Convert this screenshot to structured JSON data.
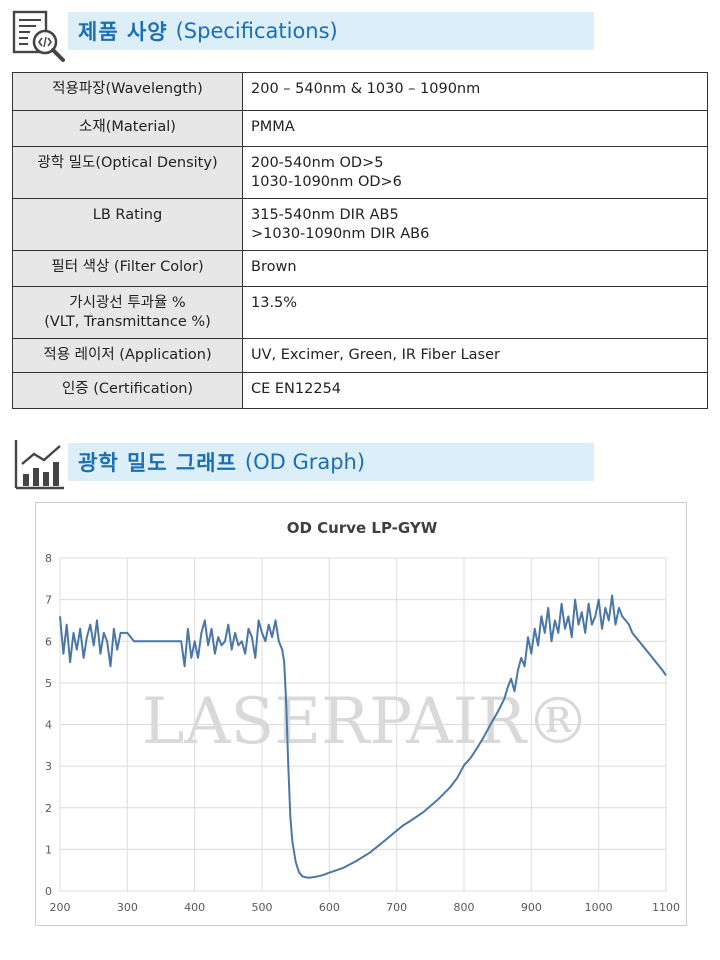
{
  "spec_section": {
    "icon": "document-code-search-icon",
    "title_ko": "제품 사양",
    "title_en": "(Specifications)"
  },
  "spec_table": [
    {
      "key": [
        "적용파장(Wavelength)"
      ],
      "value": [
        "200 – 540nm & 1030 – 1090nm"
      ]
    },
    {
      "key": [
        "소재(Material)"
      ],
      "value": [
        "PMMA"
      ]
    },
    {
      "key": [
        "광학 밀도(Optical Density)"
      ],
      "value": [
        "200-540nm OD>5",
        "1030-1090nm OD>6"
      ]
    },
    {
      "key": [
        "LB Rating"
      ],
      "value": [
        "315-540nm DIR   AB5",
        ">1030-1090nm DIR  AB6"
      ]
    },
    {
      "key": [
        "필터 색상 (Filter Color)"
      ],
      "value": [
        "Brown"
      ]
    },
    {
      "key": [
        "가시광선 투과율 %",
        "(VLT, Transmittance %)"
      ],
      "value": [
        "13.5%"
      ]
    },
    {
      "key": [
        "적용 레이저 (Application)"
      ],
      "value": [
        "UV, Excimer, Green, IR Fiber Laser"
      ]
    },
    {
      "key": [
        "인증 (Certification)"
      ],
      "value": [
        "CE EN12254"
      ]
    }
  ],
  "graph_section": {
    "icon": "bar-chart-trend-icon",
    "title_ko": "광학 밀도 그래프",
    "title_en": "(OD Graph)"
  },
  "chart_data": {
    "type": "line",
    "title": "OD Curve LP-GYW",
    "xlabel": "",
    "ylabel": "",
    "xlim": [
      200,
      1100
    ],
    "ylim": [
      0,
      8
    ],
    "x_ticks": [
      200,
      300,
      400,
      500,
      600,
      700,
      800,
      900,
      1000,
      1100
    ],
    "y_ticks": [
      0,
      1,
      2,
      3,
      4,
      5,
      6,
      7,
      8
    ],
    "grid": true,
    "watermark": "LASERPAIR®",
    "line_color": "#4a76a8",
    "series": [
      {
        "x": [
          200,
          205,
          210,
          215,
          220,
          225,
          230,
          235,
          240,
          245,
          250,
          255,
          260,
          265,
          270,
          275,
          280,
          285,
          290,
          295,
          300,
          310,
          320,
          330,
          340,
          350,
          360,
          370,
          380,
          385,
          390,
          395,
          400,
          405,
          410,
          415,
          420,
          425,
          430,
          435,
          440,
          445,
          450,
          455,
          460,
          465,
          470,
          475,
          480,
          485,
          490,
          495,
          500,
          505,
          510,
          515,
          520,
          525,
          530,
          533,
          536,
          539,
          542,
          545,
          550,
          555,
          560,
          565,
          570,
          580,
          590,
          600,
          620,
          640,
          660,
          680,
          700,
          710,
          720,
          740,
          760,
          780,
          790,
          800,
          810,
          820,
          830,
          840,
          850,
          860,
          865,
          870,
          875,
          880,
          885,
          890,
          895,
          900,
          905,
          910,
          915,
          920,
          925,
          930,
          935,
          940,
          945,
          950,
          955,
          960,
          965,
          970,
          975,
          980,
          985,
          990,
          995,
          1000,
          1005,
          1010,
          1015,
          1020,
          1025,
          1030,
          1035,
          1040,
          1045,
          1050,
          1055,
          1060,
          1065,
          1070,
          1075,
          1080,
          1085,
          1090,
          1095,
          1100
        ],
        "y": [
          6.6,
          5.7,
          6.4,
          5.5,
          6.2,
          5.8,
          6.3,
          5.6,
          6.1,
          6.4,
          5.9,
          6.5,
          5.7,
          6.2,
          6.0,
          5.4,
          6.3,
          5.8,
          6.2,
          6.2,
          6.2,
          6.0,
          6.0,
          6.0,
          6.0,
          6.0,
          6.0,
          6.0,
          6.0,
          5.4,
          6.3,
          5.6,
          6.0,
          5.6,
          6.2,
          6.5,
          5.9,
          6.3,
          5.7,
          6.1,
          5.9,
          6.0,
          6.4,
          5.8,
          6.2,
          5.9,
          6.0,
          5.7,
          6.3,
          6.1,
          5.6,
          6.5,
          6.2,
          6.0,
          6.4,
          6.1,
          6.5,
          6.0,
          5.8,
          5.5,
          4.5,
          3.0,
          1.8,
          1.2,
          0.7,
          0.45,
          0.35,
          0.33,
          0.32,
          0.34,
          0.38,
          0.44,
          0.55,
          0.72,
          0.92,
          1.18,
          1.45,
          1.58,
          1.68,
          1.9,
          2.18,
          2.5,
          2.72,
          3.02,
          3.2,
          3.45,
          3.72,
          4.02,
          4.3,
          4.62,
          4.9,
          5.1,
          4.8,
          5.3,
          5.6,
          5.4,
          6.1,
          5.7,
          6.3,
          5.9,
          6.6,
          6.2,
          6.8,
          6.0,
          6.5,
          6.2,
          6.9,
          6.3,
          6.6,
          6.1,
          7.0,
          6.4,
          6.7,
          6.2,
          6.9,
          6.4,
          6.6,
          7.0,
          6.3,
          6.8,
          6.5,
          7.1,
          6.4,
          6.8,
          6.6,
          6.5,
          6.4,
          6.2,
          6.1,
          6.0,
          5.9,
          5.8,
          5.7,
          5.6,
          5.5,
          5.4,
          5.3,
          5.18
        ]
      }
    ]
  }
}
